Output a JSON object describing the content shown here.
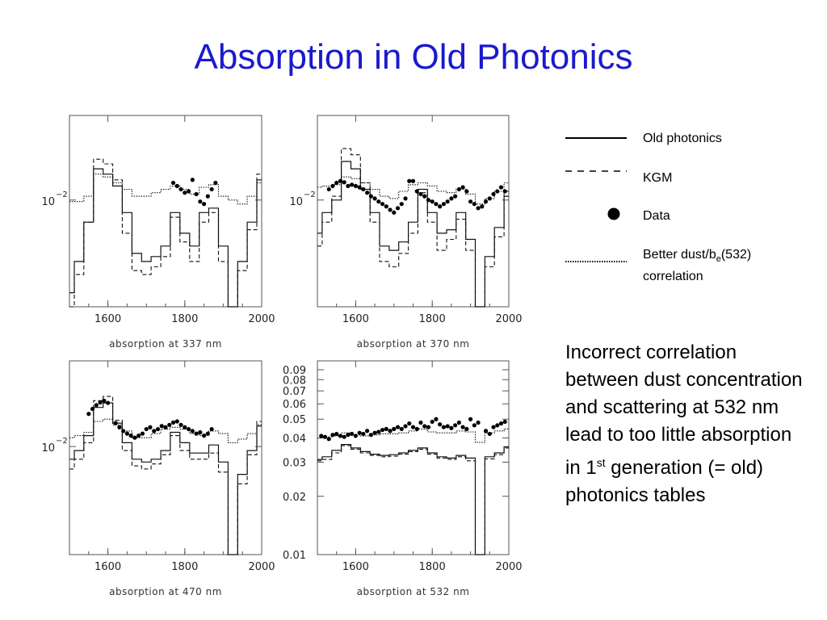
{
  "slide": {
    "title": "Absorption in Old Photonics",
    "note": {
      "before": "Incorrect correlation between dust concentration and scattering at 532 nm lead to too little absorption in 1",
      "sup": "st",
      "after": " generation (= old) photonics tables"
    }
  },
  "legend": {
    "old_photonics": "Old photonics",
    "kgm": "KGM",
    "data": "Data",
    "better_prefix": "Better dust/b",
    "better_sub": "e",
    "better_suffix": "(532)",
    "better_line2": "correlation"
  },
  "colors": {
    "title": "#1a1acc",
    "ink": "#000000"
  },
  "chart_data": [
    {
      "type": "line",
      "xlabel": "absorption at 337 nm",
      "xlim": [
        1500,
        2000
      ],
      "xticks": [
        1600,
        1800,
        2000
      ],
      "ylog": true,
      "yticks": [
        {
          "label": "10",
          "exp": "−2",
          "value": 0.01
        }
      ],
      "ylim": [
        0.0025,
        0.03
      ],
      "grid": false,
      "series": [
        {
          "name": "Old photonics",
          "style": "solid",
          "x": [
            1500,
            1525,
            1550,
            1575,
            1600,
            1625,
            1650,
            1675,
            1700,
            1725,
            1750,
            1775,
            1800,
            1825,
            1850,
            1875,
            1900,
            1925,
            1950,
            1975,
            2000
          ],
          "y": [
            0.003,
            0.0045,
            0.0075,
            0.015,
            0.014,
            0.012,
            0.0085,
            0.005,
            0.0045,
            0.0048,
            0.0055,
            0.0085,
            0.0065,
            0.0055,
            0.0085,
            0.009,
            0.0055,
            0.0014,
            0.0045,
            0.0075,
            0.013
          ]
        },
        {
          "name": "KGM",
          "style": "dashed",
          "x": [
            1500,
            1525,
            1550,
            1575,
            1600,
            1625,
            1650,
            1675,
            1700,
            1725,
            1750,
            1775,
            1800,
            1825,
            1850,
            1875,
            1900,
            1925,
            1950,
            1975,
            2000
          ],
          "y": [
            0.0025,
            0.0038,
            0.0075,
            0.017,
            0.016,
            0.013,
            0.0065,
            0.004,
            0.0038,
            0.0042,
            0.0048,
            0.008,
            0.0058,
            0.0045,
            0.0075,
            0.0085,
            0.0045,
            0.0014,
            0.004,
            0.0068,
            0.014
          ]
        },
        {
          "name": "Better dust/be(532) correlation",
          "style": "dotted",
          "x": [
            1500,
            1525,
            1550,
            1575,
            1600,
            1625,
            1650,
            1675,
            1700,
            1725,
            1750,
            1775,
            1800,
            1825,
            1850,
            1875,
            1900,
            1925,
            1950,
            1975,
            2000
          ],
          "y": [
            0.0098,
            0.0098,
            0.0105,
            0.014,
            0.0135,
            0.0125,
            0.0115,
            0.0105,
            0.0105,
            0.011,
            0.0115,
            0.012,
            0.0115,
            0.0108,
            0.0118,
            0.0122,
            0.0105,
            0.01,
            0.0095,
            0.0105,
            0.0125
          ]
        },
        {
          "name": "Data",
          "style": "points",
          "x": [
            1770,
            1780,
            1790,
            1800,
            1810,
            1820,
            1830,
            1840,
            1850,
            1860,
            1870,
            1880
          ],
          "y": [
            0.0125,
            0.012,
            0.0115,
            0.011,
            0.0112,
            0.013,
            0.0108,
            0.0098,
            0.0095,
            0.0105,
            0.0115,
            0.0125
          ]
        }
      ]
    },
    {
      "type": "line",
      "xlabel": "absorption at 370 nm",
      "xlim": [
        1500,
        2000
      ],
      "xticks": [
        1600,
        1800,
        2000
      ],
      "ylog": true,
      "yticks": [
        {
          "label": "10",
          "exp": "−2",
          "value": 0.01
        }
      ],
      "ylim": [
        0.0025,
        0.03
      ],
      "grid": false,
      "series": [
        {
          "name": "Old photonics",
          "style": "solid",
          "x": [
            1500,
            1525,
            1550,
            1575,
            1600,
            1625,
            1650,
            1675,
            1700,
            1725,
            1750,
            1775,
            1800,
            1825,
            1850,
            1875,
            1900,
            1925,
            1950,
            1975,
            2000
          ],
          "y": [
            0.0065,
            0.0085,
            0.01,
            0.0165,
            0.015,
            0.0115,
            0.0085,
            0.0055,
            0.0052,
            0.0058,
            0.0075,
            0.0115,
            0.0085,
            0.0065,
            0.0068,
            0.0085,
            0.006,
            0.0015,
            0.0048,
            0.007,
            0.0105
          ]
        },
        {
          "name": "KGM",
          "style": "dashed",
          "x": [
            1500,
            1525,
            1550,
            1575,
            1600,
            1625,
            1650,
            1675,
            1700,
            1725,
            1750,
            1775,
            1800,
            1825,
            1850,
            1875,
            1900,
            1925,
            1950,
            1975,
            2000
          ],
          "y": [
            0.0055,
            0.0075,
            0.0105,
            0.0195,
            0.018,
            0.0125,
            0.0075,
            0.0045,
            0.0042,
            0.005,
            0.0065,
            0.011,
            0.0075,
            0.0052,
            0.006,
            0.0078,
            0.0052,
            0.0015,
            0.0042,
            0.0062,
            0.0112
          ]
        },
        {
          "name": "Better dust/be(532) correlation",
          "style": "dotted",
          "x": [
            1500,
            1525,
            1550,
            1575,
            1600,
            1625,
            1650,
            1675,
            1700,
            1725,
            1750,
            1775,
            1800,
            1825,
            1850,
            1875,
            1900,
            1925,
            1950,
            1975,
            2000
          ],
          "y": [
            0.0118,
            0.012,
            0.0122,
            0.0135,
            0.0132,
            0.0125,
            0.0115,
            0.0105,
            0.0102,
            0.0112,
            0.0122,
            0.0125,
            0.012,
            0.0112,
            0.011,
            0.0115,
            0.0108,
            0.0095,
            0.0102,
            0.0112,
            0.0125
          ]
        },
        {
          "name": "Data",
          "style": "points",
          "x": [
            1530,
            1540,
            1550,
            1560,
            1570,
            1580,
            1590,
            1600,
            1610,
            1620,
            1630,
            1640,
            1650,
            1660,
            1670,
            1680,
            1690,
            1700,
            1710,
            1720,
            1730,
            1740,
            1750,
            1760,
            1770,
            1780,
            1790,
            1800,
            1810,
            1820,
            1830,
            1840,
            1850,
            1860,
            1870,
            1880,
            1890,
            1900,
            1910,
            1920,
            1930,
            1940,
            1950,
            1960,
            1970,
            1980,
            1990
          ],
          "y": [
            0.0115,
            0.012,
            0.0125,
            0.0128,
            0.0126,
            0.012,
            0.0122,
            0.012,
            0.0118,
            0.0115,
            0.011,
            0.0105,
            0.0102,
            0.0098,
            0.0095,
            0.0092,
            0.0088,
            0.0085,
            0.009,
            0.0095,
            0.0102,
            0.0128,
            0.0128,
            0.0112,
            0.0108,
            0.0105,
            0.01,
            0.0098,
            0.0095,
            0.0092,
            0.0095,
            0.0098,
            0.0102,
            0.0105,
            0.0115,
            0.0118,
            0.0112,
            0.0098,
            0.0095,
            0.009,
            0.0092,
            0.0098,
            0.0102,
            0.0108,
            0.0112,
            0.0118,
            0.0112
          ]
        }
      ]
    },
    {
      "type": "line",
      "xlabel": "absorption at 470 nm",
      "xlim": [
        1500,
        2000
      ],
      "xticks": [
        1600,
        1800,
        2000
      ],
      "ylog": true,
      "yticks": [
        {
          "label": "10",
          "exp": "−2",
          "value": 0.01
        }
      ],
      "ylim": [
        0.0025,
        0.03
      ],
      "grid": false,
      "series": [
        {
          "name": "Old photonics",
          "style": "solid",
          "x": [
            1500,
            1525,
            1550,
            1575,
            1600,
            1625,
            1650,
            1675,
            1700,
            1725,
            1750,
            1775,
            1800,
            1825,
            1850,
            1875,
            1900,
            1925,
            1950,
            1975,
            2000
          ],
          "y": [
            0.0085,
            0.0095,
            0.0115,
            0.0165,
            0.0175,
            0.0135,
            0.0105,
            0.0085,
            0.0082,
            0.0085,
            0.0095,
            0.012,
            0.0105,
            0.0092,
            0.0092,
            0.0102,
            0.0082,
            0.0014,
            0.007,
            0.0095,
            0.013
          ]
        },
        {
          "name": "KGM",
          "style": "dashed",
          "x": [
            1500,
            1525,
            1550,
            1575,
            1600,
            1625,
            1650,
            1675,
            1700,
            1725,
            1750,
            1775,
            1800,
            1825,
            1850,
            1875,
            1900,
            1925,
            1950,
            1975,
            2000
          ],
          "y": [
            0.0075,
            0.0085,
            0.0105,
            0.018,
            0.019,
            0.014,
            0.0095,
            0.0078,
            0.0075,
            0.008,
            0.009,
            0.0115,
            0.0095,
            0.0085,
            0.0085,
            0.0092,
            0.0072,
            0.0014,
            0.0062,
            0.009,
            0.0138
          ]
        },
        {
          "name": "Better dust/be(532) correlation",
          "style": "dotted",
          "x": [
            1500,
            1525,
            1550,
            1575,
            1600,
            1625,
            1650,
            1675,
            1700,
            1725,
            1750,
            1775,
            1800,
            1825,
            1850,
            1875,
            1900,
            1925,
            1950,
            1975,
            2000
          ],
          "y": [
            0.0112,
            0.0115,
            0.012,
            0.0138,
            0.0142,
            0.0132,
            0.0122,
            0.0112,
            0.0112,
            0.0118,
            0.0125,
            0.0128,
            0.0125,
            0.0118,
            0.0115,
            0.0122,
            0.0118,
            0.0105,
            0.011,
            0.0118,
            0.0132
          ]
        },
        {
          "name": "Data",
          "style": "points",
          "x": [
            1550,
            1560,
            1570,
            1580,
            1590,
            1600,
            1620,
            1630,
            1640,
            1650,
            1660,
            1670,
            1680,
            1690,
            1700,
            1710,
            1720,
            1730,
            1740,
            1750,
            1760,
            1770,
            1780,
            1790,
            1800,
            1810,
            1820,
            1830,
            1840,
            1850,
            1860,
            1870
          ],
          "y": [
            0.0152,
            0.0162,
            0.017,
            0.0176,
            0.018,
            0.0175,
            0.0135,
            0.0128,
            0.0122,
            0.0118,
            0.0115,
            0.0112,
            0.0115,
            0.0118,
            0.0125,
            0.0128,
            0.0122,
            0.0125,
            0.013,
            0.0128,
            0.0132,
            0.0136,
            0.0138,
            0.0132,
            0.0128,
            0.0125,
            0.0122,
            0.0118,
            0.012,
            0.0115,
            0.0118,
            0.0125
          ]
        }
      ]
    },
    {
      "type": "line",
      "xlabel": "absorption at 532 nm",
      "xlim": [
        1500,
        2000
      ],
      "xticks": [
        1600,
        1800,
        2000
      ],
      "ylog": true,
      "yticks": [
        {
          "label": "0.09",
          "value": 0.09
        },
        {
          "label": "0.08",
          "value": 0.08
        },
        {
          "label": "0.07",
          "value": 0.07
        },
        {
          "label": "0.06",
          "value": 0.06
        },
        {
          "label": "0.05",
          "value": 0.05
        },
        {
          "label": "0.04",
          "value": 0.04
        },
        {
          "label": "0.03",
          "value": 0.03
        },
        {
          "label": "0.02",
          "value": 0.02
        },
        {
          "label": "0.01",
          "value": 0.01
        }
      ],
      "ylim": [
        0.01,
        0.1
      ],
      "grid": false,
      "series": [
        {
          "name": "Old photonics",
          "style": "solid",
          "x": [
            1500,
            1525,
            1550,
            1575,
            1600,
            1625,
            1650,
            1675,
            1700,
            1725,
            1750,
            1775,
            1800,
            1825,
            1850,
            1875,
            1900,
            1925,
            1950,
            1975,
            2000
          ],
          "y": [
            0.031,
            0.032,
            0.0345,
            0.037,
            0.0355,
            0.034,
            0.033,
            0.0325,
            0.0328,
            0.0335,
            0.0345,
            0.0355,
            0.0335,
            0.032,
            0.0315,
            0.0325,
            0.0315,
            0.01,
            0.032,
            0.0335,
            0.036
          ]
        },
        {
          "name": "KGM",
          "style": "dashed",
          "x": [
            1500,
            1525,
            1550,
            1575,
            1600,
            1625,
            1650,
            1675,
            1700,
            1725,
            1750,
            1775,
            1800,
            1825,
            1850,
            1875,
            1900,
            1925,
            1950,
            1975,
            2000
          ],
          "y": [
            0.0305,
            0.031,
            0.0335,
            0.0365,
            0.035,
            0.0335,
            0.0325,
            0.032,
            0.0322,
            0.033,
            0.034,
            0.035,
            0.033,
            0.0315,
            0.031,
            0.032,
            0.0305,
            0.01,
            0.0312,
            0.0328,
            0.0355
          ]
        },
        {
          "name": "Better dust/be(532) correlation",
          "style": "dotted",
          "x": [
            1500,
            1525,
            1550,
            1575,
            1600,
            1625,
            1650,
            1675,
            1700,
            1725,
            1750,
            1775,
            1800,
            1825,
            1850,
            1875,
            1900,
            1925,
            1950,
            1975,
            2000
          ],
          "y": [
            0.04,
            0.0405,
            0.041,
            0.0425,
            0.0415,
            0.041,
            0.0415,
            0.042,
            0.042,
            0.0425,
            0.0435,
            0.0445,
            0.043,
            0.0425,
            0.0425,
            0.0435,
            0.043,
            0.038,
            0.0425,
            0.0435,
            0.0445
          ]
        },
        {
          "name": "Data",
          "style": "points",
          "x": [
            1510,
            1520,
            1530,
            1540,
            1550,
            1560,
            1570,
            1580,
            1590,
            1600,
            1610,
            1620,
            1630,
            1640,
            1650,
            1660,
            1670,
            1680,
            1690,
            1700,
            1710,
            1720,
            1730,
            1740,
            1750,
            1760,
            1770,
            1780,
            1790,
            1800,
            1810,
            1820,
            1830,
            1840,
            1850,
            1860,
            1870,
            1880,
            1890,
            1900,
            1910,
            1920,
            1940,
            1950,
            1960,
            1970,
            1980,
            1990
          ],
          "y": [
            0.041,
            0.0405,
            0.0395,
            0.0415,
            0.042,
            0.041,
            0.0405,
            0.0415,
            0.042,
            0.041,
            0.0425,
            0.042,
            0.0435,
            0.0415,
            0.0425,
            0.043,
            0.044,
            0.0445,
            0.0435,
            0.0445,
            0.0455,
            0.0445,
            0.046,
            0.0475,
            0.0455,
            0.0445,
            0.048,
            0.046,
            0.0455,
            0.0485,
            0.05,
            0.047,
            0.0455,
            0.046,
            0.045,
            0.0465,
            0.048,
            0.0455,
            0.0445,
            0.05,
            0.0465,
            0.048,
            0.0435,
            0.042,
            0.0455,
            0.0465,
            0.0475,
            0.0485
          ]
        }
      ]
    }
  ]
}
